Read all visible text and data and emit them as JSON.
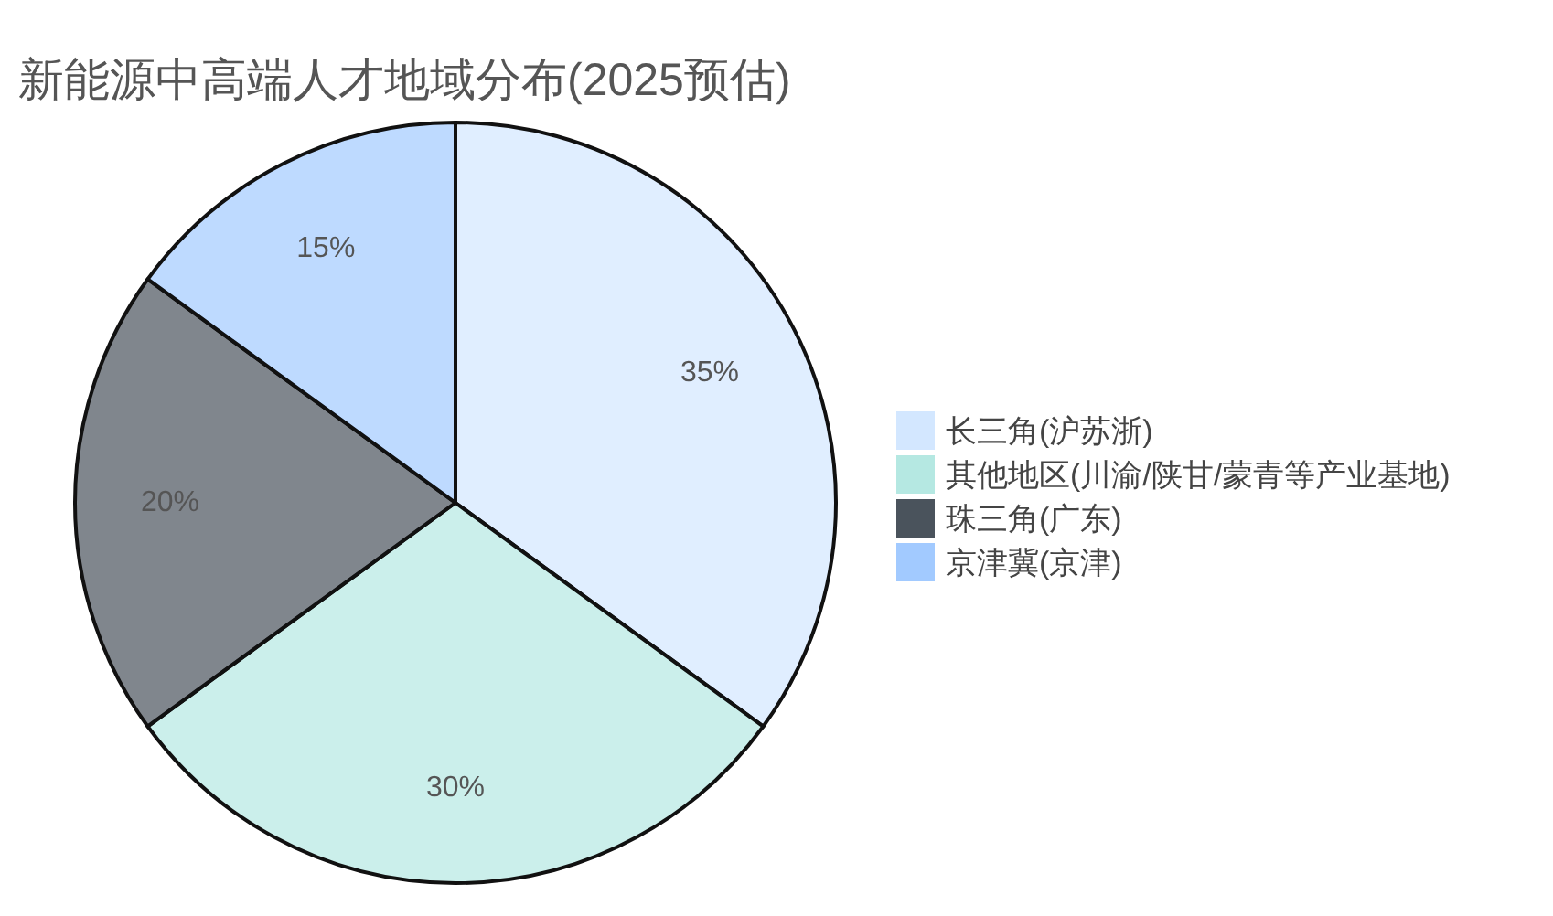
{
  "chart_data": {
    "type": "pie",
    "title": "新能源中高端人才地域分布(2025预估)",
    "categories": [
      "长三角(沪苏浙)",
      "其他地区(川渝/陕甘/蒙青等产业基地)",
      "珠三角(广东)",
      "京津冀(京津)"
    ],
    "values": [
      35,
      30,
      20,
      15
    ],
    "colors": [
      "#d3e7ff",
      "#b5e8e2",
      "#4a535c",
      "#a2caff"
    ],
    "value_labels": [
      "35%",
      "30%",
      "20%",
      "15%"
    ],
    "legend": "right"
  }
}
